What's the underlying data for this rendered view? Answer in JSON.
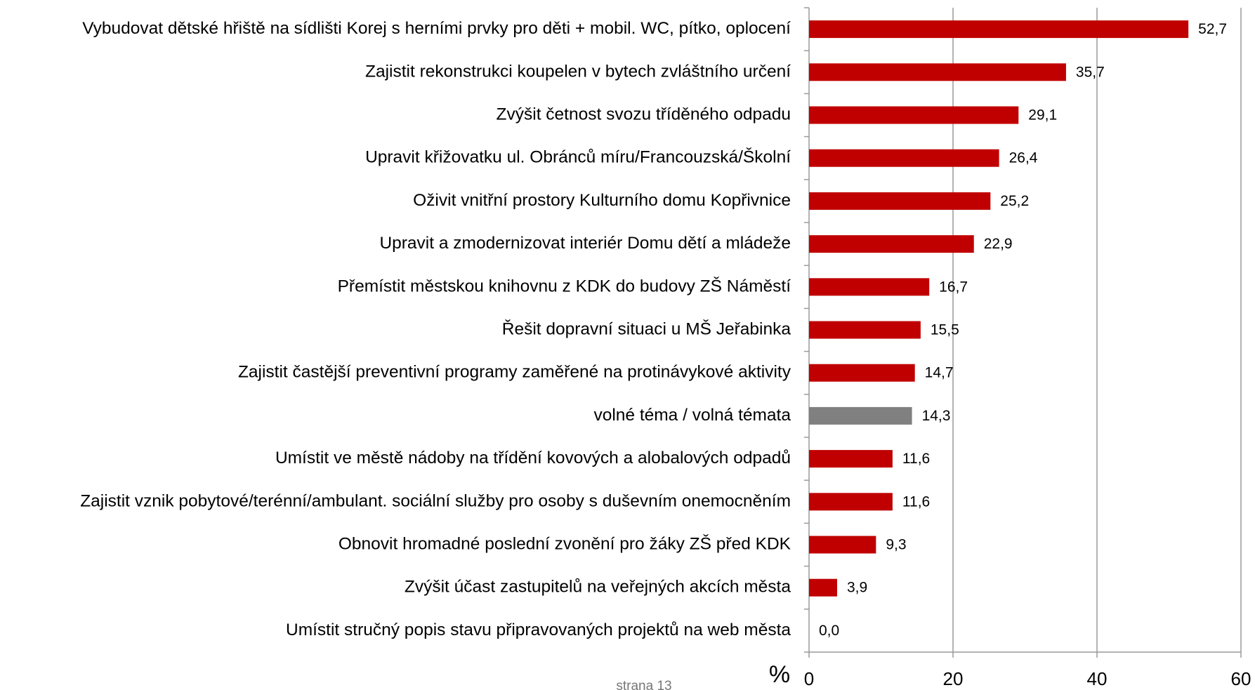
{
  "chart_data": {
    "type": "barh",
    "categories": [
      "Vybudovat dětské hřiště na sídlišti Korej s herními prvky pro děti + mobil. WC, pítko, oplocení",
      "Zajistit rekonstrukci koupelen v bytech zvláštního určení",
      "Zvýšit četnost svozu tříděného odpadu",
      "Upravit křižovatku ul. Obránců míru/Francouzská/Školní",
      "Oživit vnitřní prostory Kulturního domu Kopřivnice",
      "Upravit a zmodernizovat interiér Domu dětí a mládeže",
      "Přemístit městskou knihovnu z KDK do budovy ZŠ Náměstí",
      "Řešit dopravní situaci u MŠ Jeřabinka",
      "Zajistit častější preventivní programy zaměřené na protinávykové aktivity",
      "volné téma / volná témata",
      "Umístit ve městě nádoby na třídění kovových a alobalových odpadů",
      "Zajistit vznik pobytové/terénní/ambulant. sociální služby pro osoby s duševním onemocněním",
      "Obnovit hromadné poslední zvonění pro žáky ZŠ před KDK",
      "Zvýšit účast zastupitelů na veřejných akcích města",
      "Umístit stručný popis stavu připravovaných projektů na web města"
    ],
    "values": [
      52.7,
      35.7,
      29.1,
      26.4,
      25.2,
      22.9,
      16.7,
      15.5,
      14.7,
      14.3,
      11.6,
      11.6,
      9.3,
      3.9,
      0.0
    ],
    "value_labels": [
      "52,7",
      "35,7",
      "29,1",
      "26,4",
      "25,2",
      "22,9",
      "16,7",
      "15,5",
      "14,7",
      "14,3",
      "11,6",
      "11,6",
      "9,3",
      "3,9",
      "0,0"
    ],
    "colors": [
      "#c00000",
      "#c00000",
      "#c00000",
      "#c00000",
      "#c00000",
      "#c00000",
      "#c00000",
      "#c00000",
      "#c00000",
      "#808080",
      "#c00000",
      "#c00000",
      "#c00000",
      "#c00000",
      "#c00000"
    ],
    "xlim": [
      0,
      60
    ],
    "xticks": [
      0,
      20,
      40,
      60
    ],
    "x_label": "%",
    "grid": true,
    "footer": "strana 13"
  }
}
